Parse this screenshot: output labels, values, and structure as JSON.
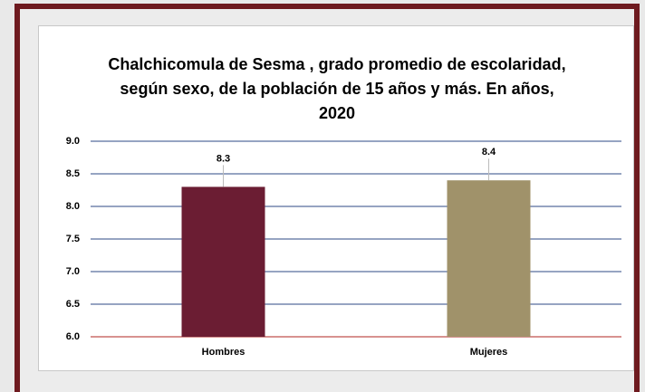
{
  "chart_data": {
    "type": "bar",
    "title": "Chalchicomula de Sesma , grado promedio de escolaridad, según sexo, de la población de 15 años y más. En años, 2020",
    "categories": [
      "Hombres",
      "Mujeres"
    ],
    "series": [
      {
        "name": null,
        "values": [
          8.3,
          8.4
        ],
        "colors": [
          "#6b1d33",
          "#a0926a"
        ]
      }
    ],
    "ylim": [
      6,
      9
    ],
    "yticks": [
      {
        "value": 6,
        "label": "6.0"
      },
      6.5,
      {
        "value": 7,
        "label": "7.0"
      },
      7.5,
      {
        "value": 8,
        "label": "8.0"
      },
      8.5,
      {
        "value": 9,
        "label": "9.0"
      }
    ],
    "grid": true
  }
}
